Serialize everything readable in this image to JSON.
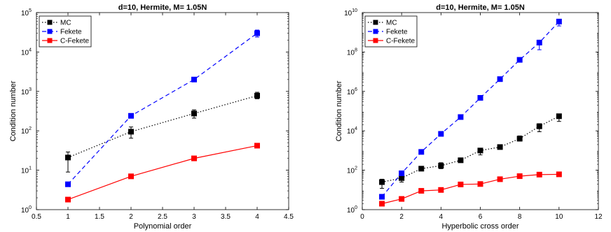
{
  "chart_data": [
    {
      "type": "line",
      "title": "d=10, Hermite, M= 1.05N",
      "xlabel": "Polynomial order",
      "ylabel": "Condition number",
      "xlim": [
        0.5,
        4.5
      ],
      "ylim": [
        1,
        100000
      ],
      "xscale": "linear",
      "yscale": "log",
      "grid": false,
      "legend_position": "top-left",
      "x_ticks": [
        0.5,
        1,
        1.5,
        2,
        2.5,
        3,
        3.5,
        4,
        4.5
      ],
      "x_tick_labels": [
        "0.5",
        "1",
        "1.5",
        "2",
        "2.5",
        "3",
        "3.5",
        "4",
        "4.5"
      ],
      "y_tick_exponents": [
        "0",
        "1",
        "2",
        "3",
        "4",
        "5"
      ],
      "series": [
        {
          "name": "MC",
          "color": "#000000",
          "dash": "dotted",
          "x": [
            1,
            2,
            3,
            4
          ],
          "y": [
            21,
            95,
            275,
            780
          ],
          "err_low": [
            9,
            65,
            210,
            650
          ],
          "err_high": [
            29,
            125,
            340,
            950
          ]
        },
        {
          "name": "Fekete",
          "color": "#0000ff",
          "dash": "dashed",
          "x": [
            1,
            2,
            3,
            4
          ],
          "y": [
            4.4,
            240,
            2000,
            30000
          ],
          "err_low": [
            4.4,
            210,
            2000,
            24000
          ],
          "err_high": [
            4.4,
            270,
            2000,
            36000
          ]
        },
        {
          "name": "C-Fekete",
          "color": "#ff0000",
          "dash": "solid",
          "x": [
            1,
            2,
            3,
            4
          ],
          "y": [
            1.8,
            7,
            20,
            42
          ],
          "err_low": [
            1.8,
            7,
            20,
            42
          ],
          "err_high": [
            1.8,
            7,
            20,
            42
          ]
        }
      ]
    },
    {
      "type": "line",
      "title": "d=10, Hermite, M= 1.05N",
      "xlabel": "Hyperbolic cross order",
      "ylabel": "Condition number",
      "xlim": [
        0,
        12
      ],
      "ylim": [
        1,
        10000000000
      ],
      "xscale": "linear",
      "yscale": "log",
      "grid": false,
      "legend_position": "top-left",
      "x_ticks": [
        0,
        2,
        4,
        6,
        8,
        10,
        12
      ],
      "x_tick_labels": [
        "0",
        "2",
        "4",
        "6",
        "8",
        "10",
        "12"
      ],
      "y_tick_exponents": [
        "0",
        "2",
        "4",
        "6",
        "8",
        "10"
      ],
      "series": [
        {
          "name": "MC",
          "color": "#000000",
          "dash": "dotted",
          "x": [
            1,
            2,
            3,
            4,
            5,
            6,
            7,
            8,
            9,
            10
          ],
          "y": [
            25,
            40,
            120,
            170,
            320,
            1000,
            1500,
            4000,
            17000,
            55000
          ],
          "err_low": [
            12,
            25,
            110,
            120,
            280,
            600,
            1300,
            3000,
            9000,
            30000
          ],
          "err_high": [
            35,
            70,
            135,
            240,
            380,
            1300,
            1800,
            5500,
            23000,
            70000
          ]
        },
        {
          "name": "Fekete",
          "color": "#0000ff",
          "dash": "dashed",
          "x": [
            1,
            2,
            3,
            4,
            5,
            6,
            7,
            8,
            9,
            10
          ],
          "y": [
            4.5,
            70,
            850,
            7000,
            50000,
            470000,
            4200000,
            40000000,
            300000000,
            3500000000
          ],
          "err_low": [
            4.5,
            60,
            850,
            7000,
            50000,
            470000,
            3500000,
            32000000,
            130000000,
            2100000000
          ],
          "err_high": [
            4.5,
            85,
            850,
            7000,
            50000,
            470000,
            5000000,
            50000000,
            400000000,
            4500000000
          ]
        },
        {
          "name": "C-Fekete",
          "color": "#ff0000",
          "dash": "solid",
          "x": [
            1,
            2,
            3,
            4,
            5,
            6,
            7,
            8,
            9,
            10
          ],
          "y": [
            2,
            3.5,
            9,
            10,
            19,
            20,
            35,
            50,
            60,
            62
          ],
          "err_low": [
            2,
            3.5,
            9,
            10,
            19,
            20,
            35,
            50,
            60,
            62
          ],
          "err_high": [
            2,
            3.5,
            9,
            10,
            19,
            20,
            35,
            50,
            60,
            62
          ]
        }
      ]
    }
  ]
}
